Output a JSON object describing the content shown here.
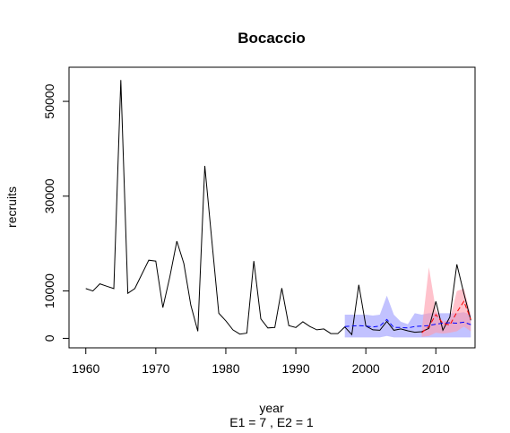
{
  "chart_data": {
    "type": "line",
    "title": "Bocaccio",
    "xlabel": "year",
    "subtitle": "E1 = 7 , E2 = 1",
    "ylabel": "recruits",
    "xlim": [
      1957.6,
      2015.6
    ],
    "ylim": [
      -2000,
      57200
    ],
    "xticks": [
      1960,
      1970,
      1980,
      1990,
      2000,
      2010
    ],
    "yticks": [
      0,
      10000,
      30000,
      50000
    ],
    "grid": false,
    "colors": {
      "observed": "#000000",
      "forecast_e1": "#0000ff",
      "forecast_e2": "#ff0000",
      "band_e1": "#9999ff",
      "band_e2": "#ff9aaa"
    },
    "observed": {
      "x": [
        1960,
        1961,
        1962,
        1963,
        1964,
        1965,
        1966,
        1967,
        1968,
        1969,
        1970,
        1971,
        1972,
        1973,
        1974,
        1975,
        1976,
        1977,
        1978,
        1979,
        1980,
        1981,
        1982,
        1983,
        1984,
        1985,
        1986,
        1987,
        1988,
        1989,
        1990,
        1991,
        1992,
        1993,
        1994,
        1995,
        1996,
        1997,
        1998,
        1999,
        2000,
        2001,
        2002,
        2003,
        2004,
        2005,
        2006,
        2007,
        2008,
        2009,
        2010,
        2011,
        2012,
        2013,
        2014,
        2015
      ],
      "y": [
        10500,
        10000,
        11500,
        11000,
        10500,
        54500,
        9500,
        10500,
        13500,
        16500,
        16300,
        6500,
        13000,
        20500,
        15800,
        7000,
        1500,
        36400,
        20700,
        5300,
        3700,
        1800,
        900,
        1100,
        16300,
        4100,
        2200,
        2300,
        10600,
        2700,
        2300,
        3500,
        2500,
        1800,
        2000,
        1000,
        1000,
        2400,
        800,
        11300,
        2600,
        1800,
        1700,
        3600,
        1700,
        2000,
        1600,
        1300,
        1400,
        2100,
        7800,
        1700,
        4500,
        15600,
        9500,
        3800
      ]
    },
    "forecast_e1": {
      "x": [
        1997,
        1998,
        1999,
        2000,
        2001,
        2002,
        2003,
        2004,
        2005,
        2006,
        2007,
        2008,
        2009,
        2010,
        2011,
        2012,
        2013,
        2014,
        2015
      ],
      "mean": [
        2500,
        2600,
        2700,
        2600,
        2400,
        2600,
        4000,
        2300,
        2300,
        2200,
        2500,
        2600,
        2700,
        3000,
        3200,
        3300,
        3200,
        3400,
        2900
      ],
      "lower": [
        200,
        200,
        200,
        200,
        200,
        200,
        500,
        200,
        200,
        200,
        200,
        200,
        200,
        200,
        200,
        200,
        200,
        200,
        200
      ],
      "upper": [
        5000,
        5000,
        5000,
        5000,
        4800,
        5000,
        9000,
        5000,
        3500,
        3000,
        5300,
        5000,
        5300,
        5300,
        5300,
        5300,
        5300,
        5500,
        5000
      ]
    },
    "forecast_e2": {
      "x": [
        2008,
        2009,
        2010,
        2011,
        2012,
        2013,
        2014,
        2015
      ],
      "mean": [
        1200,
        2500,
        5000,
        3200,
        2800,
        5500,
        7800,
        4000
      ],
      "lower": [
        300,
        500,
        1200,
        1000,
        1200,
        1500,
        2500,
        1500
      ],
      "upper": [
        1800,
        15000,
        6000,
        3500,
        4000,
        10000,
        10500,
        5000
      ]
    }
  }
}
